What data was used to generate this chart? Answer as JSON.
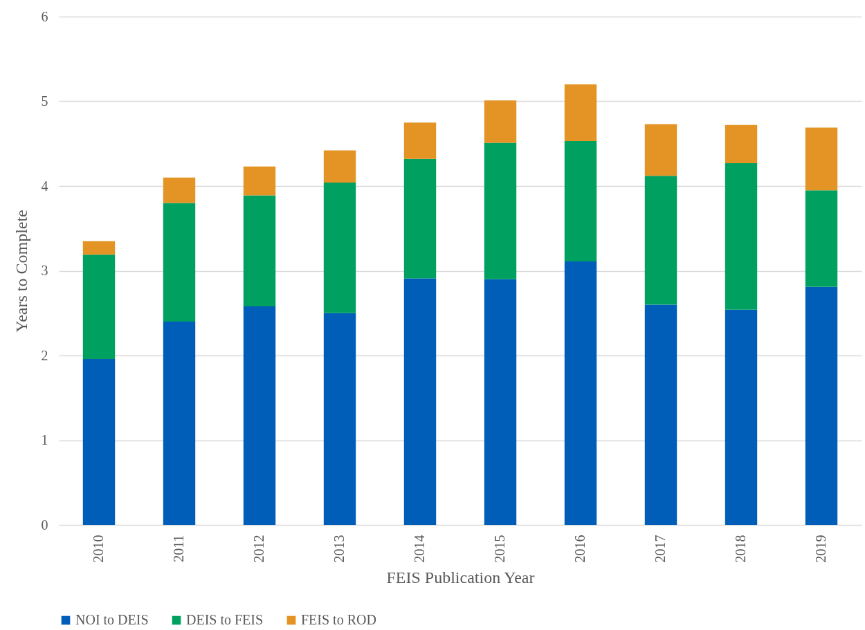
{
  "chart_data": {
    "type": "bar",
    "stacked": true,
    "xlabel": "FEIS Publication Year",
    "ylabel": "Years to Complete",
    "categories": [
      "2010",
      "2011",
      "2012",
      "2013",
      "2014",
      "2015",
      "2016",
      "2017",
      "2018",
      "2019"
    ],
    "series": [
      {
        "name": "NOI to DEIS",
        "color": "#005eb8",
        "values": [
          1.96,
          2.4,
          2.58,
          2.5,
          2.91,
          2.9,
          3.11,
          2.6,
          2.54,
          2.81
        ]
      },
      {
        "name": "DEIS to FEIS",
        "color": "#00a060",
        "values": [
          1.23,
          1.4,
          1.31,
          1.54,
          1.41,
          1.61,
          1.42,
          1.52,
          1.73,
          1.14
        ]
      },
      {
        "name": "FEIS to ROD",
        "color": "#e39424",
        "values": [
          0.16,
          0.3,
          0.34,
          0.38,
          0.43,
          0.5,
          0.67,
          0.61,
          0.45,
          0.74
        ]
      }
    ],
    "ylim": [
      0,
      6
    ],
    "yticks": [
      0,
      1,
      2,
      3,
      4,
      5,
      6
    ],
    "grid": "y",
    "legend": "bottom"
  }
}
